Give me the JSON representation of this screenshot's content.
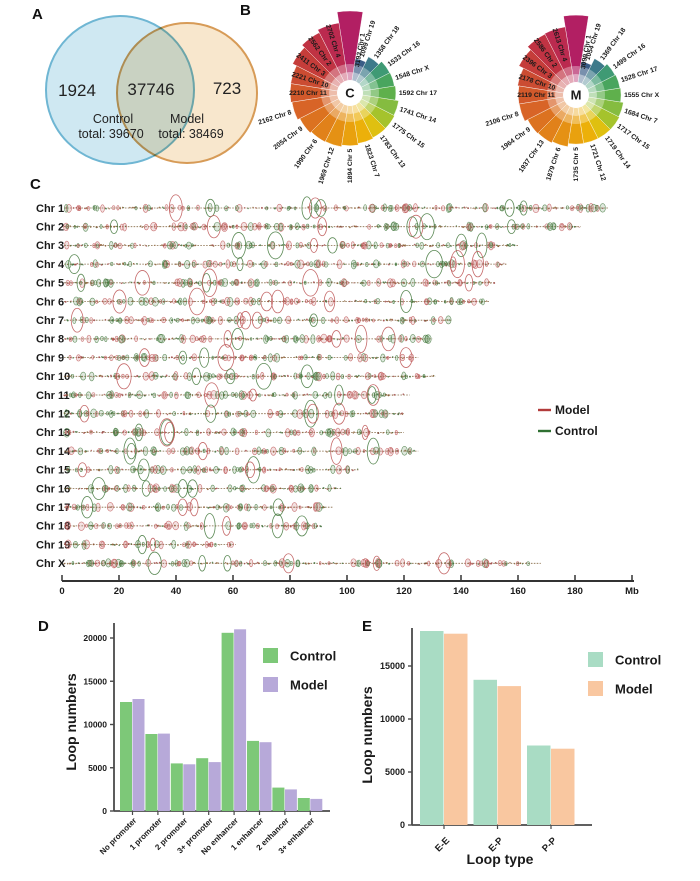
{
  "figure": {
    "panel_labels": {
      "a": "A",
      "b": "B",
      "c": "C",
      "d": "D",
      "e": "E"
    },
    "venn": {
      "left_count": "1924",
      "overlap_count": "37746",
      "right_count": "723",
      "left_name": "Control",
      "left_total": "total: 39670",
      "right_name": "Model",
      "right_total": "total: 38469",
      "left_fill": "#cfe8f2",
      "left_stroke": "#6fb6d3",
      "right_fill": "#f8e7cd",
      "right_stroke": "#d79b57"
    }
  },
  "chart_data": [
    {
      "id": "venn",
      "type": "venn",
      "sets": [
        {
          "name": "Control",
          "total": 39670,
          "unique": 1924
        },
        {
          "name": "Model",
          "total": 38469,
          "unique": 723
        }
      ],
      "overlap": 37746
    },
    {
      "id": "rose_control",
      "type": "rose",
      "center_label": "C",
      "items": [
        [
          "Chr 1",
          3193
        ],
        [
          "Chr 4",
          2702
        ],
        [
          "Chr 2",
          2562
        ],
        [
          "Chr 3",
          2411
        ],
        [
          "Chr 10",
          2221
        ],
        [
          "Chr 11",
          2210
        ],
        [
          "Chr 8",
          2162
        ],
        [
          "Chr 9",
          2054
        ],
        [
          "Chr 6",
          1990
        ],
        [
          "Chr 12",
          1969
        ],
        [
          "Chr 5",
          1894
        ],
        [
          "Chr 7",
          1823
        ],
        [
          "Chr 13",
          1783
        ],
        [
          "Chr 15",
          1775
        ],
        [
          "Chr 14",
          1741
        ],
        [
          "Chr 17",
          1592
        ],
        [
          "Chr X",
          1548
        ],
        [
          "Chr 16",
          1533
        ],
        [
          "Chr 18",
          1358
        ],
        [
          "Chr 19",
          1099
        ]
      ],
      "palette": [
        "#b21f63",
        "#bb2a4f",
        "#c03343",
        "#c53d3a",
        "#cb4c32",
        "#d2592b",
        "#d86427",
        "#dc7220",
        "#e1811a",
        "#e59114",
        "#e9a10e",
        "#ecb00a",
        "#dfc010",
        "#a5c32c",
        "#85bc40",
        "#5fb04c",
        "#49a55e",
        "#3f9a74",
        "#3d7a8a",
        "#3a5c86"
      ]
    },
    {
      "id": "rose_model",
      "type": "rose",
      "center_label": "M",
      "items": [
        [
          "Chr 1",
          3099
        ],
        [
          "Chr 4",
          2613
        ],
        [
          "Chr 2",
          2586
        ],
        [
          "Chr 3",
          2396
        ],
        [
          "Chr 10",
          2178
        ],
        [
          "Chr 11",
          2119
        ],
        [
          "Chr 8",
          2106
        ],
        [
          "Chr 9",
          1964
        ],
        [
          "Chr 13",
          1937
        ],
        [
          "Chr 6",
          1879
        ],
        [
          "Chr 5",
          1735
        ],
        [
          "Chr 12",
          1721
        ],
        [
          "Chr 14",
          1719
        ],
        [
          "Chr 15",
          1717
        ],
        [
          "Chr 7",
          1684
        ],
        [
          "Chr X",
          1555
        ],
        [
          "Chr 17",
          1528
        ],
        [
          "Chr 16",
          1499
        ],
        [
          "Chr 18",
          1369
        ],
        [
          "Chr 19",
          1054
        ]
      ],
      "palette": [
        "#b21f63",
        "#bb2a4f",
        "#c03343",
        "#c53d3a",
        "#cb4c32",
        "#d2592b",
        "#d86427",
        "#dc7220",
        "#e1811a",
        "#e59114",
        "#e9a10e",
        "#ecb00a",
        "#dfc010",
        "#a5c32c",
        "#85bc40",
        "#5fb04c",
        "#49a55e",
        "#3f9a74",
        "#3d7a8a",
        "#3a5c86"
      ]
    },
    {
      "id": "loop_tracks",
      "type": "genome_tracks",
      "chromosomes": [
        [
          "Chr 1",
          192
        ],
        [
          "Chr 2",
          182
        ],
        [
          "Chr 3",
          160
        ],
        [
          "Chr 4",
          156
        ],
        [
          "Chr 5",
          152
        ],
        [
          "Chr 6",
          150
        ],
        [
          "Chr 7",
          137
        ],
        [
          "Chr 8",
          130
        ],
        [
          "Chr 9",
          125
        ],
        [
          "Chr 10",
          131
        ],
        [
          "Chr 11",
          122
        ],
        [
          "Chr 12",
          120
        ],
        [
          "Chr 13",
          120
        ],
        [
          "Chr 14",
          125
        ],
        [
          "Chr 15",
          104
        ],
        [
          "Chr 16",
          98
        ],
        [
          "Chr 17",
          95
        ],
        [
          "Chr 18",
          91
        ],
        [
          "Chr 19",
          61
        ],
        [
          "Chr X",
          168
        ]
      ],
      "x_ticks": [
        0,
        20,
        40,
        60,
        80,
        100,
        120,
        140,
        160,
        180
      ],
      "x_unit": "Mb",
      "legend": [
        {
          "label": "Model",
          "color": "#b23b3b"
        },
        {
          "label": "Control",
          "color": "#2f7032"
        }
      ]
    },
    {
      "id": "bar_promoter_enhancer",
      "type": "bar",
      "ylabel": "Loop numbers",
      "yticks": [
        0,
        5000,
        10000,
        15000,
        20000
      ],
      "categories": [
        "No promoter",
        "1 promoter",
        "2 promoter",
        "3+ promoter",
        "No enhancer",
        "1 enhancer",
        "2 enhancer",
        "3+ enhancer"
      ],
      "series": [
        {
          "name": "Control",
          "color": "#7dc878",
          "values": [
            12600,
            8900,
            5500,
            6100,
            20600,
            8100,
            2700,
            1500
          ]
        },
        {
          "name": "Model",
          "color": "#b7a9d9",
          "values": [
            12950,
            8950,
            5400,
            5650,
            21000,
            7950,
            2500,
            1400
          ]
        }
      ]
    },
    {
      "id": "bar_loop_type",
      "type": "bar",
      "ylabel": "Loop numbers",
      "xlabel": "Loop type",
      "yticks": [
        0,
        5000,
        10000,
        15000
      ],
      "categories": [
        "E-E",
        "E-P",
        "P-P"
      ],
      "series": [
        {
          "name": "Control",
          "color": "#a9dcc4",
          "values": [
            18300,
            13700,
            7500
          ]
        },
        {
          "name": "Model",
          "color": "#f9c7a0",
          "values": [
            18050,
            13100,
            7200
          ]
        }
      ]
    }
  ]
}
